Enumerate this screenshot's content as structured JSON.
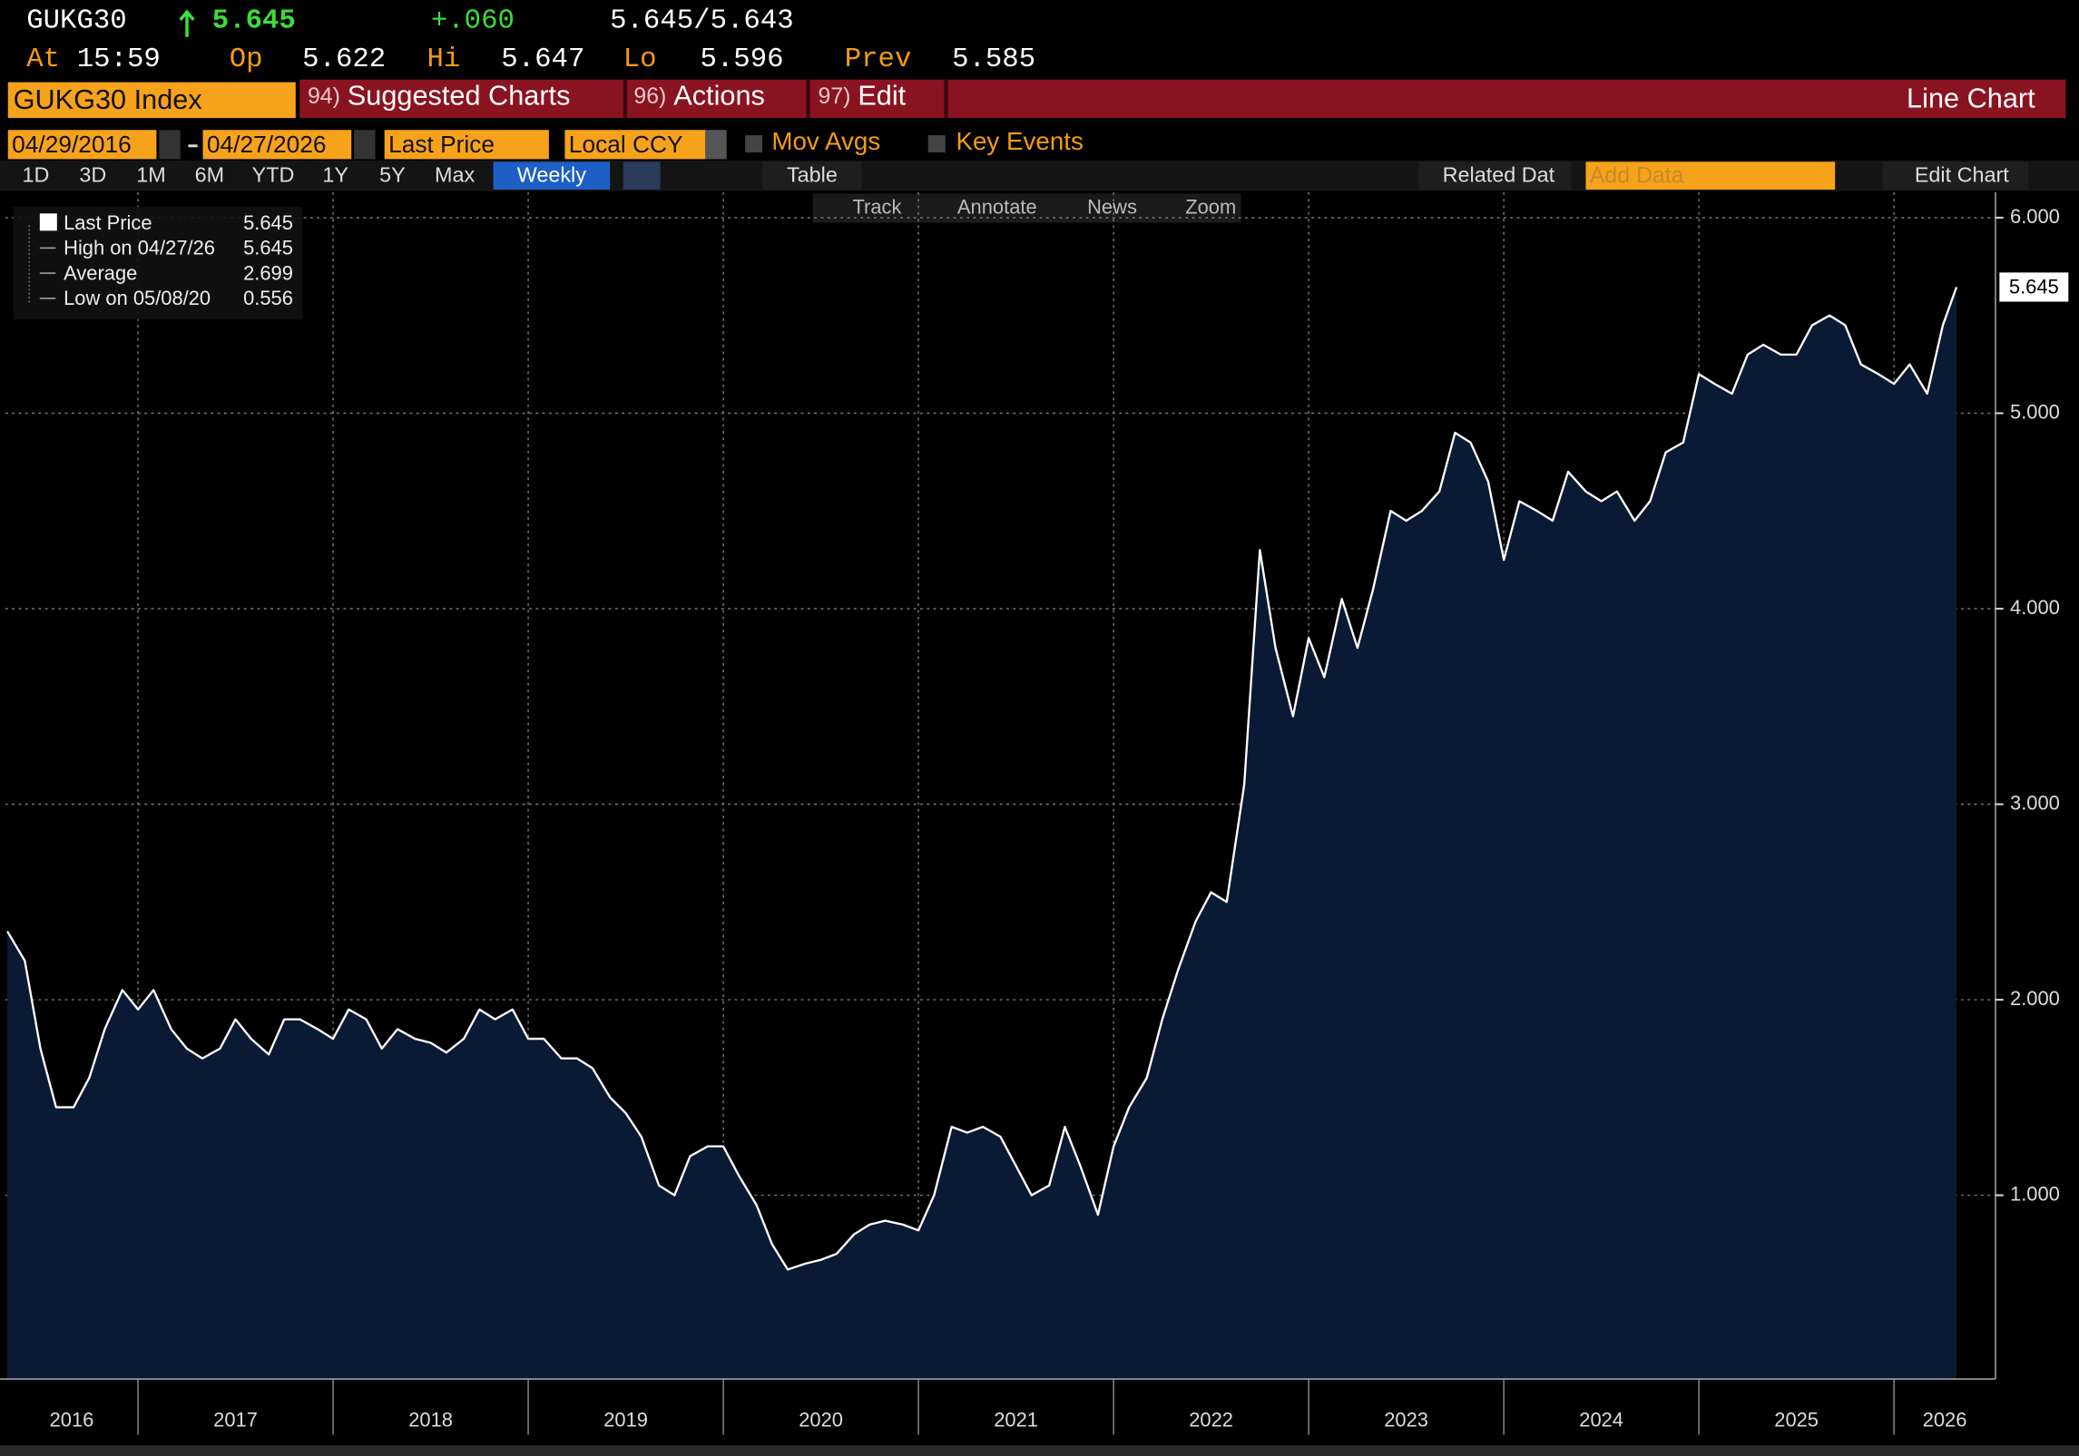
{
  "header": {
    "ticker": "GUKG30",
    "last": "5.645",
    "change": "+.060",
    "bid_ask": "5.645/5.643",
    "time_label": "At",
    "time": "15:59",
    "open_label": "Op",
    "open": "5.622",
    "high_label": "Hi",
    "high": "5.647",
    "low_label": "Lo",
    "low": "5.596",
    "prev_label": "Prev",
    "prev": "5.585"
  },
  "toolbar": {
    "security": "GUKG30 Index",
    "menus": [
      {
        "num": "94)",
        "label": "Suggested Charts"
      },
      {
        "num": "96)",
        "label": "Actions"
      },
      {
        "num": "97)",
        "label": "Edit"
      }
    ],
    "chart_type": "Line Chart"
  },
  "controls": {
    "start_date": "04/29/2016",
    "end_date": "04/27/2026",
    "field": "Last Price",
    "currency": "Local CCY",
    "mov_avgs": "Mov Avgs",
    "key_events": "Key Events",
    "periods": [
      "1D",
      "3D",
      "1M",
      "6M",
      "YTD",
      "1Y",
      "5Y",
      "Max"
    ],
    "frequency": "Weekly",
    "table": "Table",
    "related": "Related Dat",
    "add_data": "Add Data",
    "edit_chart": "Edit Chart"
  },
  "chart_tools": [
    "Track",
    "Annotate",
    "News",
    "Zoom"
  ],
  "chart_data": {
    "type": "line",
    "color": "#ffffff",
    "fill": "#0a1a35",
    "legend_items": [
      {
        "label": "Last Price",
        "value": "5.645"
      },
      {
        "label": "High on 04/27/26",
        "value": "5.645"
      },
      {
        "label": "Average",
        "value": "2.699"
      },
      {
        "label": "Low on 05/08/20",
        "value": "0.556"
      }
    ],
    "last_label": "5.645",
    "xlim": [
      2016.32,
      2026.52
    ],
    "xticks": [
      2017,
      2018,
      2019,
      2020,
      2021,
      2022,
      2023,
      2024,
      2025,
      2026
    ],
    "year_labels": [
      "2016",
      "2017",
      "2018",
      "2019",
      "2020",
      "2021",
      "2022",
      "2023",
      "2024",
      "2025",
      "2026"
    ],
    "ylim": [
      0.06,
      6.13
    ],
    "yticks": [
      {
        "value": 1,
        "label": "1.000"
      },
      {
        "value": 2,
        "label": "2.000"
      },
      {
        "value": 3,
        "label": "3.000"
      },
      {
        "value": 4,
        "label": "4.000"
      },
      {
        "value": 5,
        "label": "5.000"
      },
      {
        "value": 6,
        "label": "6.000"
      }
    ],
    "grid": true,
    "x": [
      2016.33,
      2016.42,
      2016.5,
      2016.58,
      2016.67,
      2016.75,
      2016.83,
      2016.92,
      2017.0,
      2017.08,
      2017.17,
      2017.25,
      2017.33,
      2017.42,
      2017.5,
      2017.58,
      2017.67,
      2017.75,
      2017.83,
      2017.92,
      2018.0,
      2018.08,
      2018.17,
      2018.25,
      2018.33,
      2018.42,
      2018.5,
      2018.58,
      2018.67,
      2018.75,
      2018.83,
      2018.92,
      2019.0,
      2019.08,
      2019.17,
      2019.25,
      2019.33,
      2019.42,
      2019.5,
      2019.58,
      2019.67,
      2019.75,
      2019.83,
      2019.92,
      2020.0,
      2020.08,
      2020.17,
      2020.25,
      2020.33,
      2020.42,
      2020.5,
      2020.58,
      2020.67,
      2020.75,
      2020.83,
      2020.92,
      2021.0,
      2021.08,
      2021.17,
      2021.25,
      2021.33,
      2021.42,
      2021.5,
      2021.58,
      2021.67,
      2021.75,
      2021.83,
      2021.92,
      2022.0,
      2022.08,
      2022.17,
      2022.25,
      2022.33,
      2022.42,
      2022.5,
      2022.58,
      2022.67,
      2022.75,
      2022.83,
      2022.92,
      2023.0,
      2023.08,
      2023.17,
      2023.25,
      2023.33,
      2023.42,
      2023.5,
      2023.58,
      2023.67,
      2023.75,
      2023.83,
      2023.92,
      2024.0,
      2024.08,
      2024.17,
      2024.25,
      2024.33,
      2024.42,
      2024.5,
      2024.58,
      2024.67,
      2024.75,
      2024.83,
      2024.92,
      2025.0,
      2025.08,
      2025.17,
      2025.25,
      2025.33,
      2025.42,
      2025.5,
      2025.58,
      2025.67,
      2025.75,
      2025.83,
      2025.92,
      2026.0,
      2026.08,
      2026.17,
      2026.25,
      2026.32
    ],
    "values": [
      2.35,
      2.2,
      1.75,
      1.45,
      1.45,
      1.6,
      1.85,
      2.05,
      1.95,
      2.05,
      1.85,
      1.75,
      1.7,
      1.75,
      1.9,
      1.8,
      1.72,
      1.9,
      1.9,
      1.85,
      1.8,
      1.95,
      1.9,
      1.75,
      1.85,
      1.8,
      1.78,
      1.73,
      1.8,
      1.95,
      1.9,
      1.95,
      1.8,
      1.8,
      1.7,
      1.7,
      1.65,
      1.5,
      1.42,
      1.3,
      1.05,
      1.0,
      1.2,
      1.25,
      1.25,
      1.1,
      0.95,
      0.75,
      0.62,
      0.65,
      0.67,
      0.7,
      0.8,
      0.85,
      0.87,
      0.85,
      0.82,
      1.0,
      1.35,
      1.32,
      1.35,
      1.3,
      1.15,
      1.0,
      1.05,
      1.35,
      1.15,
      0.9,
      1.25,
      1.45,
      1.6,
      1.9,
      2.15,
      2.4,
      2.55,
      2.5,
      3.1,
      4.3,
      3.8,
      3.45,
      3.85,
      3.65,
      4.05,
      3.8,
      4.1,
      4.5,
      4.45,
      4.5,
      4.6,
      4.9,
      4.85,
      4.65,
      4.25,
      4.55,
      4.5,
      4.45,
      4.7,
      4.6,
      4.55,
      4.6,
      4.45,
      4.55,
      4.8,
      4.85,
      5.2,
      5.15,
      5.1,
      5.3,
      5.35,
      5.3,
      5.3,
      5.45,
      5.5,
      5.45,
      5.25,
      5.2,
      5.15,
      5.25,
      5.1,
      5.45,
      5.645
    ]
  }
}
